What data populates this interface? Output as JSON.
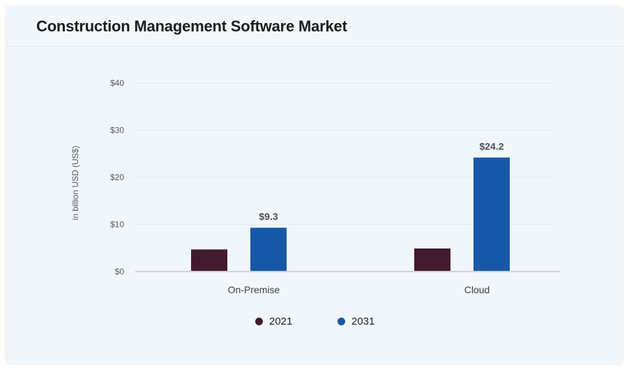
{
  "header": {
    "title": "Construction Management Software Market"
  },
  "chart_data": {
    "type": "bar",
    "title": "Construction Management Software Market",
    "xlabel": "",
    "ylabel": "in billion USD (US$)",
    "ylim": [
      0,
      40
    ],
    "yticks": [
      0,
      10,
      20,
      30,
      40
    ],
    "ytick_labels": [
      "$0",
      "$10",
      "$20",
      "$30",
      "$40"
    ],
    "grid": true,
    "categories": [
      "On-Premise",
      "Cloud"
    ],
    "series": [
      {
        "name": "2021",
        "color": "#421c2e",
        "values": [
          4.7,
          4.9
        ],
        "labels": [
          "",
          ""
        ]
      },
      {
        "name": "2031",
        "color": "#1759a8",
        "values": [
          9.3,
          24.2
        ],
        "labels": [
          "$9.3",
          "$24.2"
        ]
      }
    ],
    "legend_position": "bottom"
  }
}
